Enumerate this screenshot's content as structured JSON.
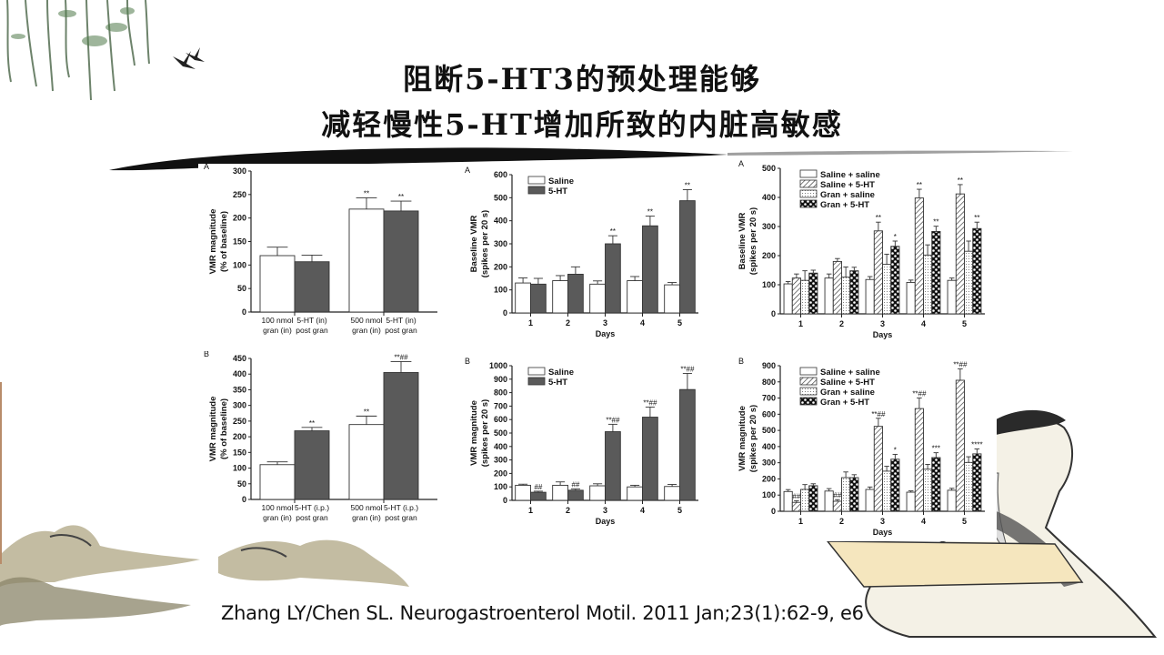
{
  "slide": {
    "title_line1": "阻断5-HT3的预处理能够",
    "title_line2": "减轻慢性5-HT增加所致的内脏高敏感",
    "citation": "Zhang LY/Chen SL. Neurogastroenterol Motil. 2011 Jan;23(1):62-9, e6"
  },
  "colors": {
    "dark_bar": "#5a5a5a",
    "white_bar": "#ffffff",
    "axis": "#222222",
    "ink": "#111111"
  },
  "chart_data": [
    {
      "id": "left-A",
      "panel_label": "A",
      "type": "bar",
      "ylabel": "VMR magnitude\n(% of baseline)",
      "ylabel_lines": [
        "VMR magnitude",
        "(% of baseline)"
      ],
      "ylim": [
        0,
        300
      ],
      "yticks": [
        0,
        50,
        100,
        150,
        200,
        250,
        300
      ],
      "categories": [
        [
          "100 nmol",
          "gran (in)"
        ],
        [
          "5-HT (in)",
          "post gran"
        ],
        [
          "500 nmol",
          "gran (in)"
        ],
        [
          "5-HT (in)",
          "post gran"
        ]
      ],
      "values": [
        120,
        107,
        219,
        215
      ],
      "errors": [
        18,
        14,
        24,
        21
      ],
      "fills": [
        "white",
        "dark",
        "white",
        "dark"
      ],
      "annotations": [
        "",
        "",
        "**",
        "**"
      ]
    },
    {
      "id": "left-B",
      "panel_label": "B",
      "type": "bar",
      "ylabel_lines": [
        "VMR magnitude",
        "(% of baseline)"
      ],
      "ylim": [
        0,
        450
      ],
      "yticks": [
        0,
        50,
        100,
        150,
        200,
        250,
        300,
        350,
        400,
        450
      ],
      "categories": [
        [
          "100 nmol",
          "gran (in)"
        ],
        [
          "5-HT (i.p.)",
          "post gran"
        ],
        [
          "500 nmol",
          "gran (in)"
        ],
        [
          "5-HT (i.p.)",
          "post gran"
        ]
      ],
      "values": [
        111,
        219,
        239,
        405
      ],
      "errors": [
        9,
        11,
        27,
        35
      ],
      "fills": [
        "white",
        "dark",
        "white",
        "dark"
      ],
      "annotations": [
        "",
        "**",
        "**",
        "**##"
      ]
    },
    {
      "id": "mid-A",
      "panel_label": "A",
      "type": "bar",
      "xlabel": "Days",
      "ylabel_lines": [
        "Baseline VMR",
        "(spikes per 20 s)"
      ],
      "ylim": [
        0,
        600
      ],
      "yticks": [
        0,
        100,
        200,
        300,
        400,
        500,
        600
      ],
      "categories": [
        "1",
        "2",
        "3",
        "4",
        "5"
      ],
      "legend": [
        {
          "name": "Saline",
          "fill": "white"
        },
        {
          "name": "5-HT",
          "fill": "dark"
        }
      ],
      "series": [
        {
          "name": "Saline",
          "fill": "white",
          "values": [
            130,
            140,
            125,
            140,
            122
          ],
          "errors": [
            22,
            22,
            14,
            18,
            10
          ],
          "annotations": [
            "",
            "",
            "",
            "",
            ""
          ]
        },
        {
          "name": "5-HT",
          "fill": "dark",
          "values": [
            125,
            168,
            300,
            378,
            487
          ],
          "errors": [
            25,
            32,
            35,
            42,
            48
          ],
          "annotations": [
            "",
            "",
            "**",
            "**",
            "**"
          ]
        }
      ]
    },
    {
      "id": "mid-B",
      "panel_label": "B",
      "type": "bar",
      "xlabel": "Days",
      "ylabel_lines": [
        "VMR magnitude",
        "(spikes per 20 s)"
      ],
      "ylim": [
        0,
        1000
      ],
      "yticks": [
        0,
        100,
        200,
        300,
        400,
        500,
        600,
        700,
        800,
        900,
        1000
      ],
      "categories": [
        "1",
        "2",
        "3",
        "4",
        "5"
      ],
      "legend": [
        {
          "name": "Saline",
          "fill": "white"
        },
        {
          "name": "5-HT",
          "fill": "dark"
        }
      ],
      "series": [
        {
          "name": "Saline",
          "fill": "white",
          "values": [
            112,
            112,
            108,
            100,
            103
          ],
          "errors": [
            8,
            25,
            15,
            12,
            15
          ],
          "annotations": [
            "",
            "",
            "",
            "",
            ""
          ]
        },
        {
          "name": "5-HT",
          "fill": "dark",
          "values": [
            60,
            75,
            510,
            618,
            823
          ],
          "errors": [
            8,
            10,
            55,
            75,
            120
          ],
          "annotations": [
            "##",
            "##",
            "**##",
            "**##",
            "**##"
          ]
        }
      ]
    },
    {
      "id": "right-A",
      "panel_label": "A",
      "type": "bar",
      "xlabel": "Days",
      "ylabel_lines": [
        "Baseline VMR",
        "(spikes per 20 s)"
      ],
      "ylim": [
        0,
        500
      ],
      "yticks": [
        0,
        100,
        200,
        300,
        400,
        500
      ],
      "categories": [
        "1",
        "2",
        "3",
        "4",
        "5"
      ],
      "legend": [
        {
          "name": "Saline + saline",
          "fill": "white"
        },
        {
          "name": "Saline + 5-HT",
          "fill": "hatch"
        },
        {
          "name": "Gran + saline",
          "fill": "dots"
        },
        {
          "name": "Gran + 5-HT",
          "fill": "check"
        }
      ],
      "series": [
        {
          "name": "Saline + saline",
          "fill": "white",
          "values": [
            103,
            123,
            118,
            108,
            115
          ],
          "errors": [
            8,
            14,
            10,
            8,
            8
          ],
          "annotations": [
            "",
            "",
            "",
            "",
            ""
          ]
        },
        {
          "name": "Saline + 5-HT",
          "fill": "hatch",
          "values": [
            123,
            180,
            285,
            398,
            412
          ],
          "errors": [
            14,
            10,
            30,
            30,
            32
          ],
          "annotations": [
            "",
            "",
            "**",
            "**",
            "**"
          ]
        },
        {
          "name": "Gran + saline",
          "fill": "dots",
          "values": [
            115,
            126,
            170,
            202,
            215
          ],
          "errors": [
            33,
            35,
            35,
            35,
            35
          ],
          "annotations": [
            "",
            "",
            "",
            "",
            ""
          ]
        },
        {
          "name": "Gran + 5-HT",
          "fill": "check",
          "values": [
            140,
            148,
            232,
            283,
            293
          ],
          "errors": [
            10,
            12,
            18,
            18,
            22
          ],
          "annotations": [
            "",
            "",
            "*",
            "**",
            "**"
          ]
        }
      ]
    },
    {
      "id": "right-B",
      "panel_label": "B",
      "type": "bar",
      "xlabel": "Days",
      "ylabel_lines": [
        "VMR magnitude",
        "(spikes per 20 s)"
      ],
      "ylim": [
        0,
        900
      ],
      "yticks": [
        0,
        100,
        200,
        300,
        400,
        500,
        600,
        700,
        800,
        900
      ],
      "categories": [
        "1",
        "2",
        "3",
        "4",
        "5"
      ],
      "legend": [
        {
          "name": "Saline + saline",
          "fill": "white"
        },
        {
          "name": "Saline + 5-HT",
          "fill": "hatch"
        },
        {
          "name": "Gran + saline",
          "fill": "dots"
        },
        {
          "name": "Gran + 5-HT",
          "fill": "check"
        }
      ],
      "series": [
        {
          "name": "Saline + saline",
          "fill": "white",
          "values": [
            122,
            125,
            135,
            118,
            130
          ],
          "errors": [
            12,
            15,
            15,
            8,
            12
          ],
          "annotations": [
            "",
            "",
            "",
            "",
            ""
          ]
        },
        {
          "name": "Saline + 5-HT",
          "fill": "hatch",
          "values": [
            55,
            62,
            525,
            635,
            810
          ],
          "errors": [
            10,
            10,
            50,
            65,
            70
          ],
          "annotations": [
            "##",
            "##",
            "**##",
            "**##",
            "**##"
          ]
        },
        {
          "name": "Gran + saline",
          "fill": "dots",
          "values": [
            135,
            208,
            248,
            260,
            302
          ],
          "errors": [
            30,
            35,
            30,
            30,
            35
          ],
          "annotations": [
            "",
            "",
            "",
            "",
            ""
          ]
        },
        {
          "name": "Gran + 5-HT",
          "fill": "check",
          "values": [
            158,
            208,
            322,
            332,
            355
          ],
          "errors": [
            12,
            18,
            30,
            30,
            30
          ],
          "annotations": [
            "",
            "",
            "*",
            "***",
            "****"
          ]
        }
      ]
    }
  ]
}
